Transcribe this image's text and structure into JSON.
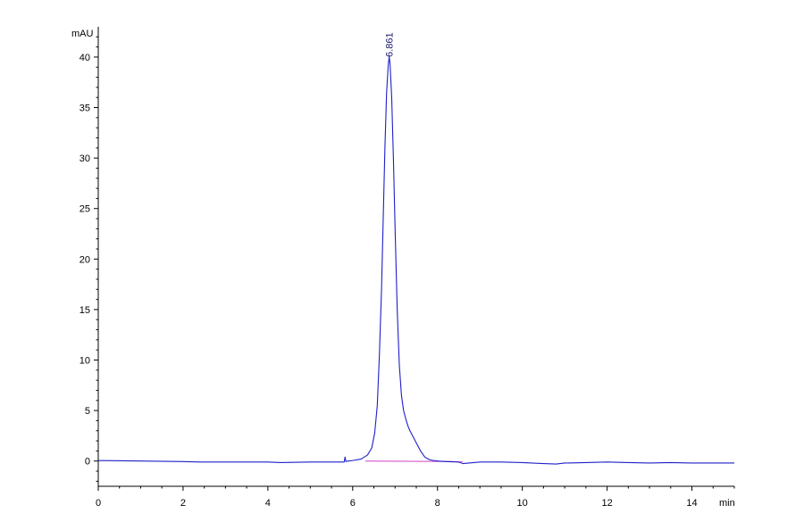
{
  "chart_data": {
    "type": "line",
    "title": "",
    "xlabel": "",
    "ylabel": "",
    "x_unit": "min",
    "y_unit": "mAU",
    "xlim": [
      0,
      15
    ],
    "ylim": [
      -2.5,
      43
    ],
    "x_ticks": [
      0,
      2,
      4,
      6,
      8,
      10,
      12,
      14
    ],
    "y_ticks": [
      0,
      5,
      10,
      15,
      20,
      25,
      30,
      35,
      40
    ],
    "grid": false,
    "legend": "none",
    "colors": {
      "signal": "#1f1fc8",
      "baseline": "#d040c8",
      "axis": "#000000",
      "peak_label": "#1a1a6e"
    },
    "series": [
      {
        "x": [
          0,
          1,
          2,
          2.4,
          3,
          4,
          4.3,
          5,
          5.5,
          5.8,
          5.82,
          5.84,
          5.9,
          6.0,
          6.2,
          6.35,
          6.45,
          6.52,
          6.58,
          6.63,
          6.68,
          6.72,
          6.76,
          6.8,
          6.84,
          6.861,
          6.88,
          6.92,
          6.96,
          7.0,
          7.05,
          7.1,
          7.15,
          7.2,
          7.25,
          7.3,
          7.35,
          7.4,
          7.5,
          7.6,
          7.7,
          7.8,
          7.9,
          8.0,
          8.2,
          8.5,
          8.6,
          9.0,
          9.5,
          10.0,
          10.5,
          10.8,
          11.0,
          11.5,
          12.0,
          12.5,
          13.0,
          13.5,
          14.0,
          14.5,
          15.0
        ],
        "y": [
          0.05,
          0.0,
          -0.05,
          -0.1,
          -0.1,
          -0.1,
          -0.15,
          -0.1,
          -0.1,
          -0.1,
          0.4,
          -0.05,
          0.0,
          0.05,
          0.2,
          0.6,
          1.3,
          2.8,
          5.5,
          10.5,
          17.0,
          24.0,
          31.0,
          36.5,
          39.3,
          40.0,
          39.4,
          36.0,
          30.0,
          23.0,
          15.0,
          9.5,
          6.5,
          5.0,
          4.2,
          3.5,
          3.0,
          2.6,
          1.8,
          1.0,
          0.4,
          0.15,
          0.05,
          0.0,
          -0.05,
          -0.1,
          -0.25,
          -0.1,
          -0.1,
          -0.15,
          -0.25,
          -0.3,
          -0.2,
          -0.15,
          -0.1,
          -0.15,
          -0.2,
          -0.15,
          -0.2,
          -0.2,
          -0.2
        ]
      }
    ],
    "baseline": {
      "x": [
        6.3,
        8.6
      ],
      "y": [
        0.0,
        -0.05
      ]
    },
    "annotations": [
      {
        "x": 6.861,
        "y": 40.0,
        "text": "6.861"
      }
    ]
  }
}
